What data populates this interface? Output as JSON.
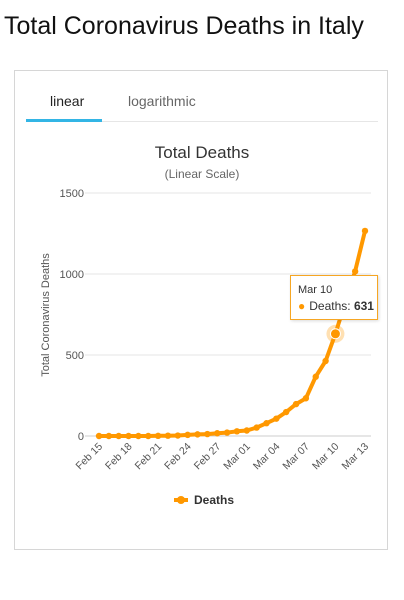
{
  "page": {
    "title": "Total Coronavirus Deaths in Italy"
  },
  "tabs": [
    {
      "label": "linear",
      "active": true
    },
    {
      "label": "logarithmic",
      "active": false
    }
  ],
  "colors": {
    "series": "#ff9800",
    "tab_active": "#33b5e5",
    "tooltip_border": "#f6a623"
  },
  "tooltip": {
    "date": "Mar 10",
    "series": "Deaths",
    "value": "631"
  },
  "chart_data": {
    "type": "line",
    "title": "Total Deaths",
    "subtitle": "(Linear Scale)",
    "ylabel": "Total Coronavirus Deaths",
    "xlabel": "",
    "ylim": [
      0,
      1500
    ],
    "yticks": [
      0,
      500,
      1000,
      1500
    ],
    "x": [
      "Feb 15",
      "Feb 16",
      "Feb 17",
      "Feb 18",
      "Feb 19",
      "Feb 20",
      "Feb 21",
      "Feb 22",
      "Feb 23",
      "Feb 24",
      "Feb 25",
      "Feb 26",
      "Feb 27",
      "Feb 28",
      "Feb 29",
      "Mar 01",
      "Mar 02",
      "Mar 03",
      "Mar 04",
      "Mar 05",
      "Mar 06",
      "Mar 07",
      "Mar 08",
      "Mar 09",
      "Mar 10",
      "Mar 11",
      "Mar 12",
      "Mar 13"
    ],
    "xtick_labels": [
      "Feb 15",
      "Feb 18",
      "Feb 21",
      "Feb 24",
      "Feb 27",
      "Mar 01",
      "Mar 04",
      "Mar 07",
      "Mar 10",
      "Mar 13"
    ],
    "series": [
      {
        "name": "Deaths",
        "values": [
          0,
          0,
          0,
          0,
          0,
          0,
          1,
          2,
          3,
          7,
          10,
          12,
          17,
          21,
          29,
          34,
          52,
          79,
          107,
          148,
          197,
          233,
          366,
          463,
          631,
          827,
          1016,
          1266
        ]
      }
    ],
    "legend": "bottom",
    "grid": true,
    "highlight_index": 24
  }
}
